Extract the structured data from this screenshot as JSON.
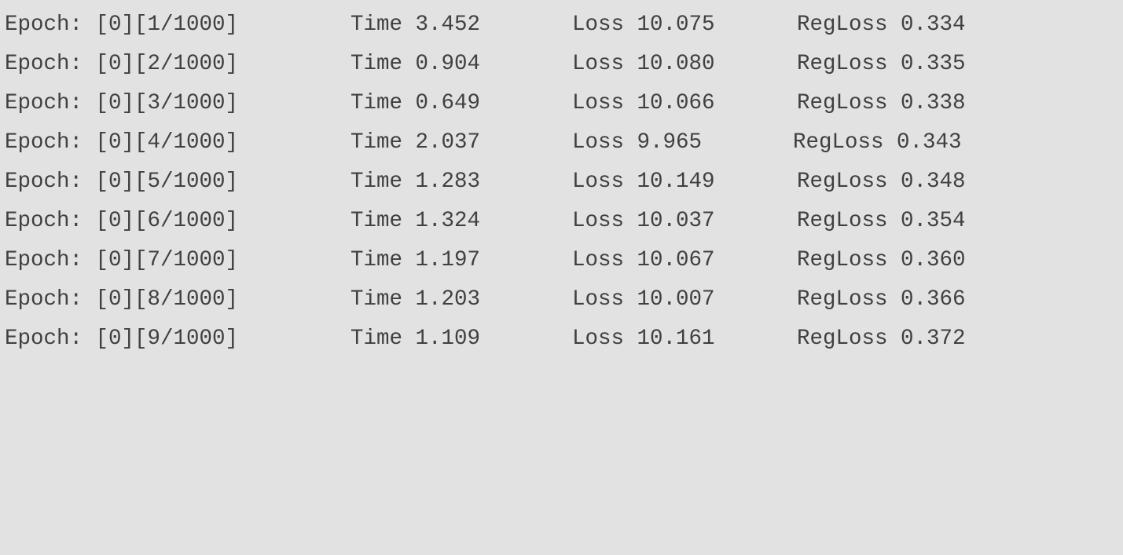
{
  "log": {
    "lines": [
      {
        "epoch": "Epoch: [0][1/1000]",
        "time": "Time 3.452",
        "loss": "Loss 10.075",
        "regloss": "RegLoss 0.334"
      },
      {
        "epoch": "Epoch: [0][2/1000]",
        "time": "Time 0.904",
        "loss": "Loss 10.080",
        "regloss": "RegLoss 0.335"
      },
      {
        "epoch": "Epoch: [0][3/1000]",
        "time": "Time 0.649",
        "loss": "Loss 10.066",
        "regloss": "RegLoss 0.338"
      },
      {
        "epoch": "Epoch: [0][4/1000]",
        "time": "Time 2.037",
        "loss": "Loss 9.965",
        "regloss": "RegLoss 0.343"
      },
      {
        "epoch": "Epoch: [0][5/1000]",
        "time": "Time 1.283",
        "loss": "Loss 10.149",
        "regloss": "RegLoss 0.348"
      },
      {
        "epoch": "Epoch: [0][6/1000]",
        "time": "Time 1.324",
        "loss": "Loss 10.037",
        "regloss": "RegLoss 0.354"
      },
      {
        "epoch": "Epoch: [0][7/1000]",
        "time": "Time 1.197",
        "loss": "Loss 10.067",
        "regloss": "RegLoss 0.360"
      },
      {
        "epoch": "Epoch: [0][8/1000]",
        "time": "Time 1.203",
        "loss": "Loss 10.007",
        "regloss": "RegLoss 0.366"
      },
      {
        "epoch": "Epoch: [0][9/1000]",
        "time": "Time 1.109",
        "loss": "Loss 10.161",
        "regloss": "RegLoss 0.372"
      }
    ]
  },
  "colors": {
    "background": "#e2e2e2",
    "text": "#404040"
  }
}
